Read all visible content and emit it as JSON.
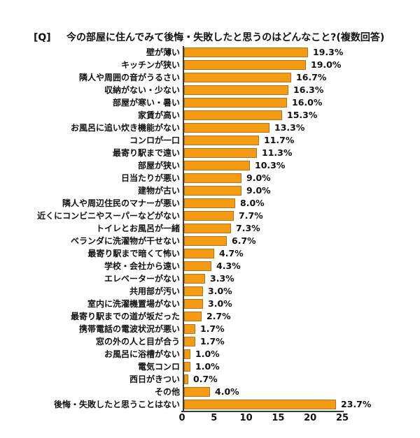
{
  "title": {
    "prefix": "[Q]",
    "text": "今の部屋に住んでみて後悔・失敗したと思うのはどんなこと?(複数回答)"
  },
  "colors": {
    "bar_fill": "#F39B13",
    "bar_border": "#B0761F",
    "axis": "#3A3A3A",
    "text": "#111111",
    "background": "#FFFFFF"
  },
  "chart_data": {
    "type": "bar",
    "orientation": "horizontal",
    "title": "今の部屋に住んでみて後悔・失敗したと思うのはどんなこと?(複数回答)",
    "xlabel": "",
    "ylabel": "",
    "xlim": [
      0,
      25
    ],
    "x_ticks": [
      "0",
      "5",
      "10",
      "15",
      "20",
      "25"
    ],
    "x_tick_values": [
      0,
      5,
      10,
      15,
      20,
      25
    ],
    "grid": false,
    "legend": false,
    "categories": [
      "壁が薄い",
      "キッチンが狭い",
      "隣人や周囲の音がうるさい",
      "収納がない・少ない",
      "部屋が寒い・暑い",
      "家賃が高い",
      "お風呂に追い炊き機能がない",
      "コンロが一口",
      "最寄り駅まで遠い",
      "部屋が狭い",
      "日当たりが悪い",
      "建物が古い",
      "隣人や周辺住民のマナーが悪い",
      "近くにコンビニやスーパーなどがない",
      "トイレとお風呂が一緒",
      "ベランダに洗濯物が干せない",
      "最寄り駅まで暗くて怖い",
      "学校・会社から遠い",
      "エレベーターがない",
      "共用部が汚い",
      "室内に洗濯機置場がない",
      "最寄り駅までの道が坂だった",
      "携帯電話の電波状況が悪い",
      "窓の外の人と目が合う",
      "お風呂に浴槽がない",
      "電気コンロ",
      "西日がきつい",
      "その他",
      "後悔・失敗したと思うことはない"
    ],
    "values": [
      19.3,
      19.0,
      16.7,
      16.3,
      16.0,
      15.3,
      13.3,
      11.7,
      11.3,
      10.3,
      9.0,
      9.0,
      8.0,
      7.7,
      7.3,
      6.7,
      4.7,
      4.3,
      3.3,
      3.0,
      3.0,
      2.7,
      1.7,
      1.7,
      1.0,
      1.0,
      0.7,
      4.0,
      23.7
    ],
    "value_labels": [
      "19.3%",
      "19.0%",
      "16.7%",
      "16.3%",
      "16.0%",
      "15.3%",
      "13.3%",
      "11.7%",
      "11.3%",
      "10.3%",
      "9.0%",
      "9.0%",
      "8.0%",
      "7.7%",
      "7.3%",
      "6.7%",
      "4.7%",
      "4.3%",
      "3.3%",
      "3.0%",
      "3.0%",
      "2.7%",
      "1.7%",
      "1.7%",
      "1.0%",
      "1.0%",
      "0.7%",
      "4.0%",
      "23.7%"
    ]
  }
}
